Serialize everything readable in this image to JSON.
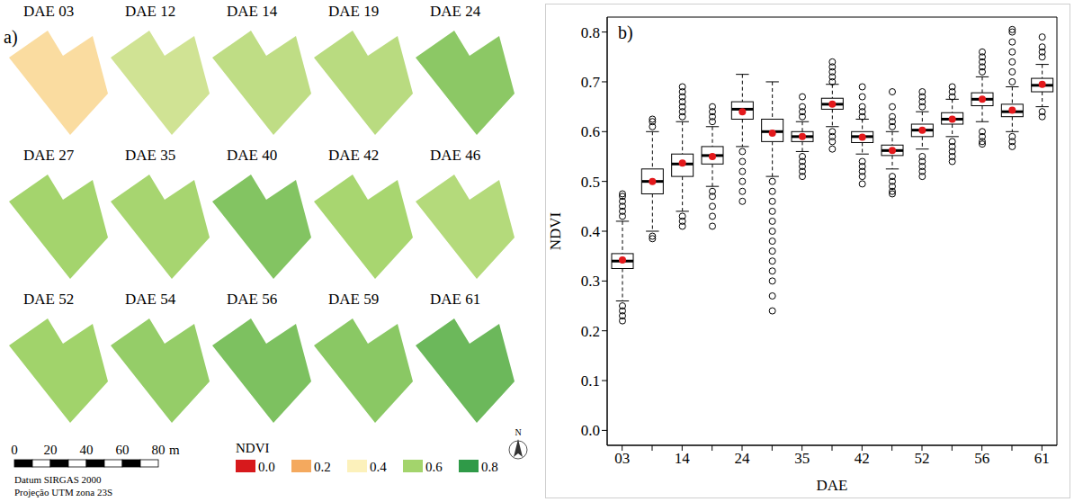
{
  "chart_data": [
    {
      "type": "map",
      "panel_label": "a)",
      "maps": [
        "DAE 03",
        "DAE 12",
        "DAE 14",
        "DAE 19",
        "DAE 24",
        "DAE 27",
        "DAE 35",
        "DAE 40",
        "DAE 42",
        "DAE 46",
        "DAE 52",
        "DAE 54",
        "DAE 56",
        "DAE 59",
        "DAE 61"
      ],
      "values": [
        0.342,
        0.5,
        0.537,
        0.55,
        0.64,
        0.597,
        0.59,
        0.655,
        0.589,
        0.562,
        0.603,
        0.625,
        0.665,
        0.643,
        0.695
      ],
      "colorbar": {
        "title": "NDVI",
        "range": [
          0,
          0.8
        ],
        "ticks": [
          {
            "value": 0,
            "label": "0.0"
          },
          {
            "value": 0.2,
            "label": "0.2"
          },
          {
            "value": 0.4,
            "label": "0.4"
          },
          {
            "value": 0.6,
            "label": "0.6"
          },
          {
            "value": 0.8,
            "label": "0.8"
          }
        ],
        "colors": [
          "#d7191c",
          "#f4a95e",
          "#fcf1bb",
          "#a3d46c",
          "#2f9a48"
        ]
      },
      "scale_bar": {
        "ticks": [
          0,
          20,
          40,
          60,
          80
        ],
        "unit": "m"
      },
      "annotations": [
        "Datum SIRGAS 2000",
        "Projeção UTM zona 23S"
      ],
      "north": "N"
    },
    {
      "type": "box",
      "panel_label": "b)",
      "xlabel": "DAE",
      "ylabel": "NDVI",
      "categories": [
        "03",
        null,
        "14",
        null,
        "24",
        null,
        "35",
        null,
        "42",
        null,
        "52",
        null,
        "56",
        null,
        "61"
      ],
      "ylim": [
        -0.03,
        0.83
      ],
      "yticks": [
        {
          "value": 0,
          "label": "0.0"
        },
        {
          "value": 0.1,
          "label": "0.1"
        },
        {
          "value": 0.2,
          "label": "0.2"
        },
        {
          "value": 0.3,
          "label": "0.3"
        },
        {
          "value": 0.4,
          "label": "0.4"
        },
        {
          "value": 0.5,
          "label": "0.5"
        },
        {
          "value": 0.6,
          "label": "0.6"
        },
        {
          "value": 0.7,
          "label": "0.7"
        },
        {
          "value": 0.8,
          "label": "0.8"
        }
      ],
      "boxes": [
        {
          "whisker_low": 0.26,
          "q1": 0.325,
          "median": 0.34,
          "q3": 0.355,
          "whisker_high": 0.42,
          "mean": 0.342,
          "outliers": [
            0.22,
            0.23,
            0.24,
            0.25,
            0.43,
            0.44,
            0.45,
            0.46,
            0.47,
            0.475
          ]
        },
        {
          "whisker_low": 0.4,
          "q1": 0.475,
          "median": 0.5,
          "q3": 0.525,
          "whisker_high": 0.6,
          "mean": 0.5,
          "outliers": [
            0.385,
            0.39,
            0.61,
            0.62,
            0.625
          ]
        },
        {
          "whisker_low": 0.44,
          "q1": 0.51,
          "median": 0.535,
          "q3": 0.555,
          "whisker_high": 0.62,
          "mean": 0.537,
          "outliers": [
            0.41,
            0.42,
            0.43,
            0.63,
            0.64,
            0.65,
            0.66,
            0.67,
            0.68,
            0.69
          ]
        },
        {
          "whisker_low": 0.49,
          "q1": 0.535,
          "median": 0.552,
          "q3": 0.57,
          "whisker_high": 0.61,
          "mean": 0.55,
          "outliers": [
            0.41,
            0.43,
            0.45,
            0.47,
            0.48,
            0.62,
            0.63,
            0.64,
            0.65
          ]
        },
        {
          "whisker_low": 0.57,
          "q1": 0.625,
          "median": 0.645,
          "q3": 0.66,
          "whisker_high": 0.715,
          "mean": 0.64,
          "outliers": [
            0.46,
            0.48,
            0.5,
            0.52,
            0.54,
            0.56
          ]
        },
        {
          "whisker_low": 0.51,
          "q1": 0.58,
          "median": 0.6,
          "q3": 0.625,
          "whisker_high": 0.7,
          "mean": 0.597,
          "outliers": [
            0.24,
            0.27,
            0.3,
            0.32,
            0.34,
            0.36,
            0.38,
            0.4,
            0.42,
            0.44,
            0.46,
            0.48,
            0.5
          ]
        },
        {
          "whisker_low": 0.56,
          "q1": 0.58,
          "median": 0.59,
          "q3": 0.6,
          "whisker_high": 0.62,
          "mean": 0.59,
          "outliers": [
            0.51,
            0.52,
            0.53,
            0.54,
            0.55,
            0.63,
            0.64,
            0.65,
            0.67
          ]
        },
        {
          "whisker_low": 0.61,
          "q1": 0.645,
          "median": 0.655,
          "q3": 0.667,
          "whisker_high": 0.695,
          "mean": 0.655,
          "outliers": [
            0.565,
            0.58,
            0.59,
            0.6,
            0.7,
            0.71,
            0.72,
            0.73,
            0.74
          ]
        },
        {
          "whisker_low": 0.555,
          "q1": 0.578,
          "median": 0.59,
          "q3": 0.6,
          "whisker_high": 0.625,
          "mean": 0.589,
          "outliers": [
            0.495,
            0.51,
            0.52,
            0.53,
            0.54,
            0.63,
            0.64,
            0.65,
            0.67,
            0.69
          ]
        },
        {
          "whisker_low": 0.525,
          "q1": 0.552,
          "median": 0.562,
          "q3": 0.573,
          "whisker_high": 0.6,
          "mean": 0.562,
          "outliers": [
            0.475,
            0.48,
            0.49,
            0.5,
            0.51,
            0.61,
            0.62,
            0.63,
            0.65,
            0.68
          ]
        },
        {
          "whisker_low": 0.565,
          "q1": 0.59,
          "median": 0.603,
          "q3": 0.615,
          "whisker_high": 0.64,
          "mean": 0.603,
          "outliers": [
            0.51,
            0.52,
            0.53,
            0.54,
            0.55,
            0.65,
            0.66,
            0.67,
            0.68
          ]
        },
        {
          "whisker_low": 0.59,
          "q1": 0.615,
          "median": 0.625,
          "q3": 0.638,
          "whisker_high": 0.665,
          "mean": 0.625,
          "outliers": [
            0.54,
            0.55,
            0.56,
            0.57,
            0.58,
            0.67,
            0.68,
            0.69
          ]
        },
        {
          "whisker_low": 0.62,
          "q1": 0.652,
          "median": 0.665,
          "q3": 0.678,
          "whisker_high": 0.71,
          "mean": 0.665,
          "outliers": [
            0.575,
            0.58,
            0.59,
            0.6,
            0.72,
            0.73,
            0.74,
            0.75,
            0.76
          ]
        },
        {
          "whisker_low": 0.6,
          "q1": 0.63,
          "median": 0.64,
          "q3": 0.655,
          "whisker_high": 0.69,
          "mean": 0.643,
          "outliers": [
            0.57,
            0.58,
            0.59,
            0.7,
            0.72,
            0.74,
            0.76,
            0.78,
            0.8,
            0.805
          ]
        },
        {
          "whisker_low": 0.65,
          "q1": 0.68,
          "median": 0.693,
          "q3": 0.707,
          "whisker_high": 0.735,
          "mean": 0.695,
          "outliers": [
            0.63,
            0.64,
            0.75,
            0.76,
            0.77,
            0.79
          ]
        }
      ]
    }
  ]
}
